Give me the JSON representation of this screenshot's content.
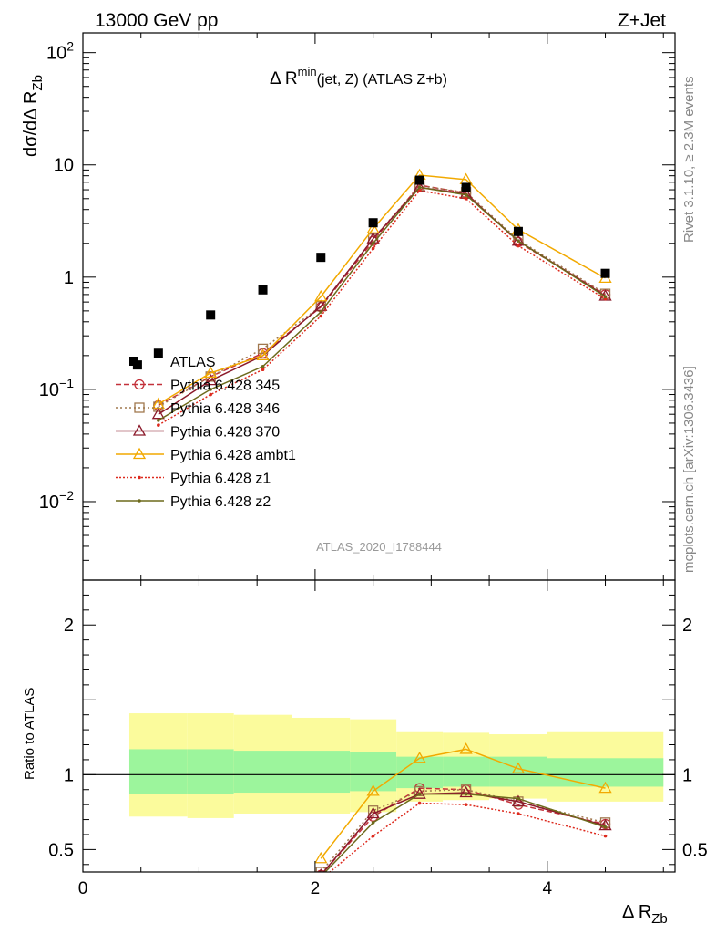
{
  "header": {
    "left": "13000 GeV pp",
    "right": "Z+Jet"
  },
  "side_labels": {
    "rivet": "Rivet 3.1.10, ≥ 2.3M events",
    "mcplots": "mcplots.cern.ch [arXiv:1306.3436]"
  },
  "plot_title": {
    "main": "Δ R",
    "sup": "min",
    "sub": "(jet, Z) (ATLAS Z+b)"
  },
  "y_axis_label": {
    "main": "dσ/dΔ R",
    "sub": "Zb"
  },
  "x_axis_label": {
    "main": "Δ R",
    "sub": "Zb"
  },
  "ratio_ylabel": "Ratio to ATLAS",
  "analysis_id": "ATLAS_2020_I1788444",
  "chart_data": {
    "type": "line",
    "x": [
      0.65,
      1.1,
      1.55,
      2.05,
      2.5,
      2.9,
      3.3,
      3.75,
      4.5
    ],
    "xlim": [
      0,
      5.1
    ],
    "x_ticks": [
      "0",
      "2",
      "4"
    ],
    "main_panel": {
      "y_scale": "log",
      "ylim": [
        0.002,
        150
      ],
      "y_ticks": [
        "10^-2",
        "10^-1",
        "1",
        "10",
        "10^2"
      ],
      "data": {
        "name": "ATLAS",
        "x": [
          0.47,
          0.65,
          1.1,
          1.55,
          2.05,
          2.5,
          2.9,
          3.3,
          3.75,
          4.5
        ],
        "y": [
          0.165,
          0.21,
          0.46,
          0.77,
          1.5,
          3.05,
          7.3,
          6.3,
          2.55,
          1.08
        ]
      },
      "series": [
        {
          "name": "Pythia 6.428 345",
          "color": "#c3313a",
          "dash": "6,3",
          "marker": "circle",
          "x": [
            0.65,
            1.1,
            1.55,
            2.05,
            2.5,
            2.9,
            3.3,
            3.75,
            4.5
          ],
          "y": [
            0.072,
            0.13,
            0.21,
            0.54,
            2.1,
            6.6,
            5.6,
            2.05,
            0.7
          ]
        },
        {
          "name": "Pythia 6.428 346",
          "color": "#a0784e",
          "dash": "2,3",
          "marker": "square",
          "x": [
            0.65,
            1.1,
            1.55,
            2.05,
            2.5,
            2.9,
            3.3,
            3.75,
            4.5
          ],
          "y": [
            0.07,
            0.13,
            0.23,
            0.55,
            2.2,
            6.5,
            5.7,
            2.15,
            0.71
          ]
        },
        {
          "name": "Pythia 6.428 370",
          "color": "#8b1a2b",
          "dash": "",
          "marker": "triangle",
          "x": [
            0.65,
            1.1,
            1.55,
            2.05,
            2.5,
            2.9,
            3.3,
            3.75,
            4.5
          ],
          "y": [
            0.06,
            0.12,
            0.2,
            0.55,
            2.2,
            6.3,
            5.5,
            2.1,
            0.68
          ]
        },
        {
          "name": "Pythia 6.428 ambt1",
          "color": "#f2a900",
          "dash": "",
          "marker": "triangle",
          "x": [
            0.65,
            1.1,
            1.55,
            2.05,
            2.5,
            2.9,
            3.3,
            3.75,
            4.5
          ],
          "y": [
            0.074,
            0.14,
            0.2,
            0.67,
            2.7,
            8.1,
            7.4,
            2.65,
            0.98
          ]
        },
        {
          "name": "Pythia 6.428 z1",
          "color": "#dd2a1e",
          "dash": "2,2",
          "marker": "dot",
          "x": [
            0.65,
            1.1,
            1.55,
            2.05,
            2.5,
            2.9,
            3.3,
            3.75,
            4.5
          ],
          "y": [
            0.048,
            0.09,
            0.15,
            0.45,
            1.8,
            5.9,
            5.0,
            1.9,
            0.64
          ]
        },
        {
          "name": "Pythia 6.428 z2",
          "color": "#6d6a1c",
          "dash": "",
          "marker": "dot",
          "x": [
            0.65,
            1.1,
            1.55,
            2.05,
            2.5,
            2.9,
            3.3,
            3.75,
            4.5
          ],
          "y": [
            0.053,
            0.1,
            0.16,
            0.49,
            2.0,
            6.3,
            5.4,
            2.1,
            0.67
          ]
        }
      ]
    },
    "ratio_panel": {
      "ylim": [
        0.35,
        2.3
      ],
      "y_ticks": [
        "0.5",
        "1",
        "2"
      ],
      "bands": [
        {
          "x0": 0.4,
          "x1": 0.9,
          "inner": [
            0.87,
            1.17
          ],
          "outer": [
            0.72,
            1.41
          ]
        },
        {
          "x0": 0.9,
          "x1": 1.3,
          "inner": [
            0.87,
            1.17
          ],
          "outer": [
            0.71,
            1.41
          ]
        },
        {
          "x0": 1.3,
          "x1": 1.8,
          "inner": [
            0.88,
            1.16
          ],
          "outer": [
            0.74,
            1.4
          ]
        },
        {
          "x0": 1.8,
          "x1": 2.3,
          "inner": [
            0.88,
            1.16
          ],
          "outer": [
            0.74,
            1.38
          ]
        },
        {
          "x0": 2.3,
          "x1": 2.7,
          "inner": [
            0.89,
            1.15
          ],
          "outer": [
            0.75,
            1.37
          ]
        },
        {
          "x0": 2.7,
          "x1": 3.1,
          "inner": [
            0.91,
            1.12
          ],
          "outer": [
            0.82,
            1.29
          ]
        },
        {
          "x0": 3.1,
          "x1": 3.5,
          "inner": [
            0.92,
            1.12
          ],
          "outer": [
            0.83,
            1.28
          ]
        },
        {
          "x0": 3.5,
          "x1": 4.0,
          "inner": [
            0.92,
            1.12
          ],
          "outer": [
            0.84,
            1.27
          ]
        },
        {
          "x0": 4.0,
          "x1": 5.0,
          "inner": [
            0.92,
            1.11
          ],
          "outer": [
            0.82,
            1.29
          ]
        }
      ],
      "series": [
        {
          "name": "Pythia 6.428 345",
          "x": [
            2.05,
            2.5,
            2.9,
            3.3,
            3.75,
            4.5
          ],
          "y": [
            0.33,
            0.72,
            0.91,
            0.9,
            0.8,
            0.67
          ]
        },
        {
          "name": "Pythia 6.428 346",
          "x": [
            2.05,
            2.5,
            2.9,
            3.3,
            3.75,
            4.5
          ],
          "y": [
            0.35,
            0.76,
            0.89,
            0.9,
            0.82,
            0.68
          ]
        },
        {
          "name": "Pythia 6.428 370",
          "x": [
            2.05,
            2.5,
            2.9,
            3.3,
            3.75,
            4.5
          ],
          "y": [
            0.33,
            0.74,
            0.87,
            0.88,
            0.82,
            0.66
          ]
        },
        {
          "name": "Pythia 6.428 ambt1",
          "x": [
            2.05,
            2.5,
            2.9,
            3.3,
            3.75,
            4.5
          ],
          "y": [
            0.44,
            0.89,
            1.11,
            1.17,
            1.04,
            0.91
          ]
        },
        {
          "name": "Pythia 6.428 z1",
          "x": [
            2.05,
            2.5,
            2.9,
            3.3,
            3.75,
            4.5
          ],
          "y": [
            0.3,
            0.59,
            0.81,
            0.8,
            0.74,
            0.59
          ]
        },
        {
          "name": "Pythia 6.428 z2",
          "x": [
            2.05,
            2.5,
            2.9,
            3.3,
            3.75,
            4.5
          ],
          "y": [
            0.32,
            0.68,
            0.87,
            0.87,
            0.84,
            0.65
          ]
        }
      ]
    },
    "legend_position": "lower-left",
    "band_colors": {
      "inner": "#9cf59c",
      "outer": "#fbfb9c"
    }
  }
}
